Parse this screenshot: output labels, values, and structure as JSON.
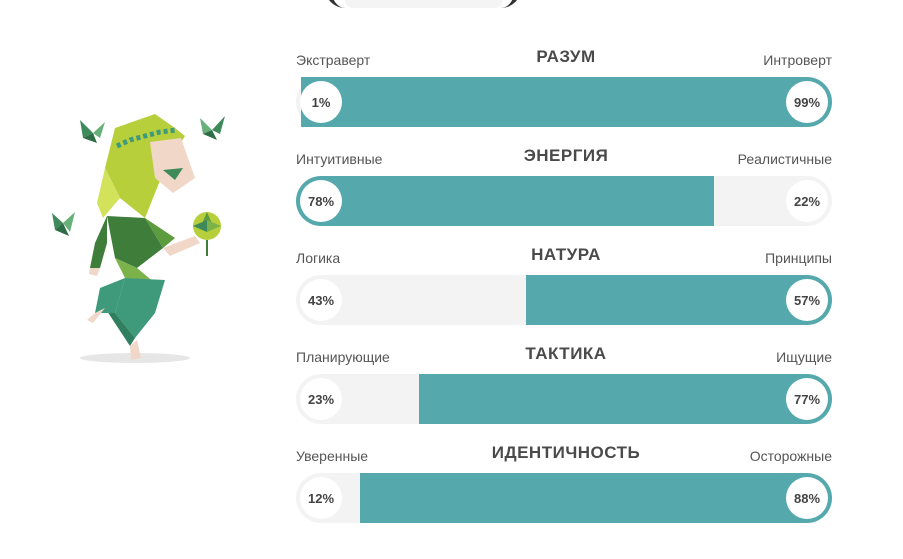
{
  "colors": {
    "accent": "#55a9ad",
    "track": "#f3f3f3",
    "figure_green_light": "#b7cf3a",
    "figure_green_dark": "#3f7d3a",
    "figure_teal": "#3e9a7a",
    "skin": "#f1d7c8"
  },
  "traits": [
    {
      "title": "РАЗУМ",
      "left_label": "Экстраверт",
      "right_label": "Интроверт",
      "left_percent_label": "1%",
      "right_percent_label": "99%",
      "dominant": "right",
      "dominant_fraction": 0.99
    },
    {
      "title": "ЭНЕРГИЯ",
      "left_label": "Интуитивные",
      "right_label": "Реалистичные",
      "left_percent_label": "78%",
      "right_percent_label": "22%",
      "dominant": "left",
      "dominant_fraction": 0.78
    },
    {
      "title": "НАТУРА",
      "left_label": "Логика",
      "right_label": "Принципы",
      "left_percent_label": "43%",
      "right_percent_label": "57%",
      "dominant": "right",
      "dominant_fraction": 0.57
    },
    {
      "title": "ТАКТИКА",
      "left_label": "Планирующие",
      "right_label": "Ищущие",
      "left_percent_label": "23%",
      "right_percent_label": "77%",
      "dominant": "right",
      "dominant_fraction": 0.77
    },
    {
      "title": "ИДЕНТИЧНОСТЬ",
      "left_label": "Уверенные",
      "right_label": "Осторожные",
      "left_percent_label": "12%",
      "right_percent_label": "88%",
      "dominant": "right",
      "dominant_fraction": 0.88
    }
  ]
}
